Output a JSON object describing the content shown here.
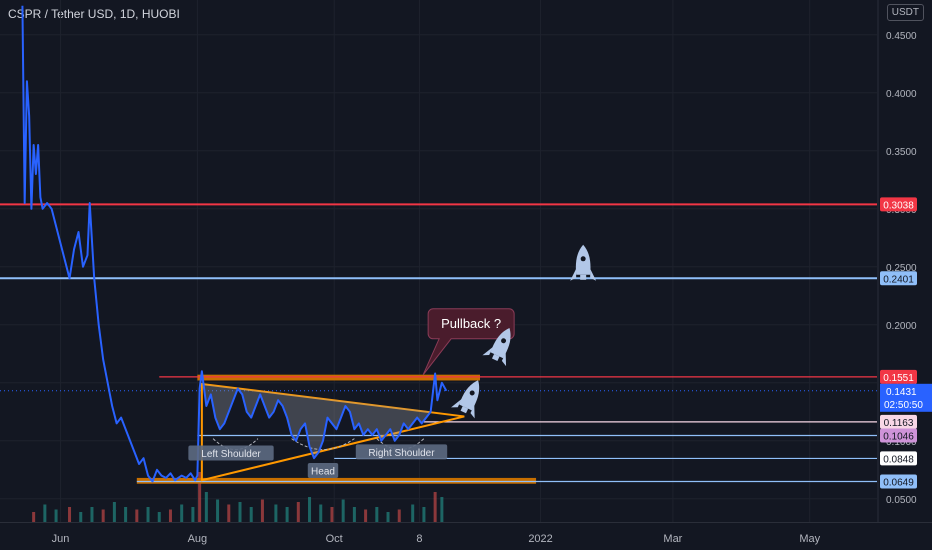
{
  "header": {
    "title": "CSPR / Tether USD, 1D, HUOBI",
    "unit": "USDT"
  },
  "colors": {
    "background": "#131722",
    "grid": "#1e222d",
    "price_line": "#2962ff",
    "resistance_red": "#f23645",
    "support_blue": "#90bff9",
    "zone_orange": "#c76f00",
    "pattern_orange": "#ff9800",
    "volume_up": "#26a69a",
    "volume_down": "#ef5350",
    "callout_bg": "#4a1c2c",
    "rocket": "#b2c7e8"
  },
  "chart_data": {
    "type": "line",
    "title": "CSPR / Tether USD, 1D, HUOBI",
    "ylim": [
      0.03,
      0.48
    ],
    "y_ticks": [
      {
        "value": 0.45,
        "label": "0.4500"
      },
      {
        "value": 0.4,
        "label": "0.4000"
      },
      {
        "value": 0.35,
        "label": "0.3500"
      },
      {
        "value": 0.3,
        "label": "0.3000"
      },
      {
        "value": 0.25,
        "label": "0.2500"
      },
      {
        "value": 0.2,
        "label": "0.2000"
      },
      {
        "value": 0.15,
        "label": "0.1500"
      },
      {
        "value": 0.1,
        "label": "0.1000"
      },
      {
        "value": 0.05,
        "label": "0.0500"
      }
    ],
    "x_ticks": [
      {
        "date": "2021-06-01",
        "label": "Jun"
      },
      {
        "date": "2021-08-01",
        "label": "Aug"
      },
      {
        "date": "2021-10-01",
        "label": "Oct"
      },
      {
        "date": "2021-11-08",
        "label": "8"
      },
      {
        "date": "2022-01-01",
        "label": "2022"
      },
      {
        "date": "2022-03-01",
        "label": "Mar"
      },
      {
        "date": "2022-05-01",
        "label": "May"
      }
    ],
    "xlim": [
      "2021-05-05",
      "2022-05-31"
    ],
    "series": [
      {
        "points": [
          [
            "2021-05-15",
            0.475
          ],
          [
            "2021-05-16",
            0.305
          ],
          [
            "2021-05-17",
            0.41
          ],
          [
            "2021-05-18",
            0.38
          ],
          [
            "2021-05-19",
            0.3
          ],
          [
            "2021-05-20",
            0.355
          ],
          [
            "2021-05-21",
            0.33
          ],
          [
            "2021-05-22",
            0.355
          ],
          [
            "2021-05-23",
            0.31
          ],
          [
            "2021-05-24",
            0.3
          ],
          [
            "2021-05-26",
            0.305
          ],
          [
            "2021-05-28",
            0.3
          ],
          [
            "2021-06-01",
            0.27
          ],
          [
            "2021-06-03",
            0.255
          ],
          [
            "2021-06-05",
            0.24
          ],
          [
            "2021-06-07",
            0.265
          ],
          [
            "2021-06-09",
            0.28
          ],
          [
            "2021-06-11",
            0.25
          ],
          [
            "2021-06-13",
            0.26
          ],
          [
            "2021-06-14",
            0.305
          ],
          [
            "2021-06-16",
            0.24
          ],
          [
            "2021-06-18",
            0.2
          ],
          [
            "2021-06-20",
            0.17
          ],
          [
            "2021-06-22",
            0.15
          ],
          [
            "2021-06-24",
            0.13
          ],
          [
            "2021-06-26",
            0.115
          ],
          [
            "2021-06-28",
            0.12
          ],
          [
            "2021-07-01",
            0.105
          ],
          [
            "2021-07-04",
            0.09
          ],
          [
            "2021-07-06",
            0.08
          ],
          [
            "2021-07-08",
            0.085
          ],
          [
            "2021-07-10",
            0.07
          ],
          [
            "2021-07-12",
            0.065
          ],
          [
            "2021-07-14",
            0.075
          ],
          [
            "2021-07-16",
            0.07
          ],
          [
            "2021-07-18",
            0.068
          ],
          [
            "2021-07-20",
            0.072
          ],
          [
            "2021-07-22",
            0.066
          ],
          [
            "2021-07-25",
            0.07
          ],
          [
            "2021-07-27",
            0.068
          ],
          [
            "2021-07-29",
            0.072
          ],
          [
            "2021-07-31",
            0.066
          ],
          [
            "2021-08-01",
            0.07
          ],
          [
            "2021-08-02",
            0.145
          ],
          [
            "2021-08-03",
            0.16
          ],
          [
            "2021-08-05",
            0.13
          ],
          [
            "2021-08-07",
            0.14
          ],
          [
            "2021-08-09",
            0.12
          ],
          [
            "2021-08-11",
            0.11
          ],
          [
            "2021-08-13",
            0.115
          ],
          [
            "2021-08-15",
            0.125
          ],
          [
            "2021-08-17",
            0.135
          ],
          [
            "2021-08-19",
            0.145
          ],
          [
            "2021-08-21",
            0.14
          ],
          [
            "2021-08-23",
            0.125
          ],
          [
            "2021-08-25",
            0.12
          ],
          [
            "2021-08-27",
            0.13
          ],
          [
            "2021-08-29",
            0.14
          ],
          [
            "2021-08-31",
            0.13
          ],
          [
            "2021-09-02",
            0.12
          ],
          [
            "2021-09-04",
            0.125
          ],
          [
            "2021-09-06",
            0.135
          ],
          [
            "2021-09-08",
            0.13
          ],
          [
            "2021-09-10",
            0.12
          ],
          [
            "2021-09-12",
            0.105
          ],
          [
            "2021-09-14",
            0.1
          ],
          [
            "2021-09-16",
            0.11
          ],
          [
            "2021-09-18",
            0.115
          ],
          [
            "2021-09-20",
            0.095
          ],
          [
            "2021-09-22",
            0.085
          ],
          [
            "2021-09-24",
            0.09
          ],
          [
            "2021-09-26",
            0.1
          ],
          [
            "2021-09-28",
            0.12
          ],
          [
            "2021-09-30",
            0.115
          ],
          [
            "2021-10-02",
            0.11
          ],
          [
            "2021-10-04",
            0.12
          ],
          [
            "2021-10-06",
            0.13
          ],
          [
            "2021-10-08",
            0.125
          ],
          [
            "2021-10-10",
            0.11
          ],
          [
            "2021-10-12",
            0.115
          ],
          [
            "2021-10-14",
            0.105
          ],
          [
            "2021-10-16",
            0.11
          ],
          [
            "2021-10-18",
            0.105
          ],
          [
            "2021-10-20",
            0.11
          ],
          [
            "2021-10-22",
            0.1
          ],
          [
            "2021-10-24",
            0.105
          ],
          [
            "2021-10-26",
            0.11
          ],
          [
            "2021-10-28",
            0.1
          ],
          [
            "2021-10-30",
            0.105
          ],
          [
            "2021-11-01",
            0.115
          ],
          [
            "2021-11-03",
            0.11
          ],
          [
            "2021-11-05",
            0.115
          ],
          [
            "2021-11-07",
            0.12
          ],
          [
            "2021-11-09",
            0.115
          ],
          [
            "2021-11-11",
            0.12
          ],
          [
            "2021-11-13",
            0.125
          ],
          [
            "2021-11-15",
            0.158
          ],
          [
            "2021-11-16",
            0.135
          ],
          [
            "2021-11-18",
            0.15
          ],
          [
            "2021-11-20",
            0.1431
          ]
        ]
      }
    ],
    "volume": [
      {
        "date": "2021-05-20",
        "value": 0.2
      },
      {
        "date": "2021-05-25",
        "value": 0.35
      },
      {
        "date": "2021-05-30",
        "value": 0.25
      },
      {
        "date": "2021-06-05",
        "value": 0.3
      },
      {
        "date": "2021-06-10",
        "value": 0.2
      },
      {
        "date": "2021-06-15",
        "value": 0.3
      },
      {
        "date": "2021-06-20",
        "value": 0.25
      },
      {
        "date": "2021-06-25",
        "value": 0.4
      },
      {
        "date": "2021-06-30",
        "value": 0.3
      },
      {
        "date": "2021-07-05",
        "value": 0.25
      },
      {
        "date": "2021-07-10",
        "value": 0.3
      },
      {
        "date": "2021-07-15",
        "value": 0.2
      },
      {
        "date": "2021-07-20",
        "value": 0.25
      },
      {
        "date": "2021-07-25",
        "value": 0.35
      },
      {
        "date": "2021-07-30",
        "value": 0.3
      },
      {
        "date": "2021-08-02",
        "value": 1.0
      },
      {
        "date": "2021-08-05",
        "value": 0.6
      },
      {
        "date": "2021-08-10",
        "value": 0.45
      },
      {
        "date": "2021-08-15",
        "value": 0.35
      },
      {
        "date": "2021-08-20",
        "value": 0.4
      },
      {
        "date": "2021-08-25",
        "value": 0.3
      },
      {
        "date": "2021-08-30",
        "value": 0.45
      },
      {
        "date": "2021-09-05",
        "value": 0.35
      },
      {
        "date": "2021-09-10",
        "value": 0.3
      },
      {
        "date": "2021-09-15",
        "value": 0.4
      },
      {
        "date": "2021-09-20",
        "value": 0.5
      },
      {
        "date": "2021-09-25",
        "value": 0.35
      },
      {
        "date": "2021-09-30",
        "value": 0.3
      },
      {
        "date": "2021-10-05",
        "value": 0.45
      },
      {
        "date": "2021-10-10",
        "value": 0.3
      },
      {
        "date": "2021-10-15",
        "value": 0.25
      },
      {
        "date": "2021-10-20",
        "value": 0.3
      },
      {
        "date": "2021-10-25",
        "value": 0.2
      },
      {
        "date": "2021-10-30",
        "value": 0.25
      },
      {
        "date": "2021-11-05",
        "value": 0.35
      },
      {
        "date": "2021-11-10",
        "value": 0.3
      },
      {
        "date": "2021-11-15",
        "value": 0.6
      },
      {
        "date": "2021-11-18",
        "value": 0.5
      }
    ],
    "levels": [
      {
        "value": 0.3038,
        "label": "0.3038",
        "color": "#f23645",
        "from": "2021-05-05",
        "to": "2022-05-31"
      },
      {
        "value": 0.2401,
        "label": "0.2401",
        "color": "#90bff9",
        "from": "2021-05-05",
        "to": "2022-05-31"
      },
      {
        "value": 0.1551,
        "label": "0.1551",
        "color": "#f23645",
        "from": "2021-07-15",
        "to": "2022-05-31"
      },
      {
        "value": 0.1163,
        "label": "0.1163",
        "color": "#f8d7e6",
        "from": "2021-11-10",
        "to": "2022-05-31"
      },
      {
        "value": 0.1046,
        "label": "0.1046",
        "color": "#90bff9",
        "from": "2021-08-01",
        "to": "2022-05-31"
      },
      {
        "value": 0.0848,
        "label": "0.0848",
        "color": "#90bff9",
        "from": "2021-10-01",
        "to": "2022-05-31"
      },
      {
        "value": 0.0649,
        "label": "0.0649",
        "color": "#90bff9",
        "from": "2021-07-05",
        "to": "2022-05-31"
      }
    ],
    "level_badges": [
      {
        "label": "0.3038",
        "bg": "#f23645",
        "fg": "#ffffff"
      },
      {
        "label": "0.2401",
        "bg": "#90bff9",
        "fg": "#131722"
      },
      {
        "label": "0.1551",
        "bg": "#f23645",
        "fg": "#ffffff"
      },
      {
        "label": "0.1163",
        "bg": "#f8d7e6",
        "fg": "#131722"
      },
      {
        "label": "0.1046",
        "bg": "#ce93d8",
        "fg": "#131722"
      },
      {
        "label": "0.0848",
        "bg": "#ffffff",
        "fg": "#131722"
      },
      {
        "label": "0.0649",
        "bg": "#90bff9",
        "fg": "#131722"
      }
    ],
    "last_price": {
      "value": 0.1431,
      "label": "0.1431",
      "countdown": "02:50:50",
      "color": "#2962ff"
    },
    "zones": [
      {
        "from": "2021-08-01",
        "to": "2021-12-05",
        "low": 0.152,
        "high": 0.157
      },
      {
        "from": "2021-07-05",
        "to": "2021-12-30",
        "low": 0.063,
        "high": 0.068
      }
    ],
    "triangle": [
      [
        "2021-08-03",
        0.149
      ],
      [
        "2021-11-28",
        0.121
      ],
      [
        "2021-08-03",
        0.066
      ]
    ],
    "pattern_labels": [
      {
        "text": "Left Shoulder",
        "date": "2021-08-16",
        "value": 0.089
      },
      {
        "text": "Head",
        "date": "2021-09-26",
        "value": 0.074
      },
      {
        "text": "Right Shoulder",
        "date": "2021-10-31",
        "value": 0.09
      }
    ],
    "callout": {
      "text": "Pullback ?",
      "date": "2021-11-15",
      "value": 0.2
    },
    "rockets": [
      {
        "date": "2022-01-20",
        "value": 0.25
      },
      {
        "date": "2021-12-14",
        "value": 0.18
      },
      {
        "date": "2021-11-30",
        "value": 0.135
      }
    ]
  }
}
